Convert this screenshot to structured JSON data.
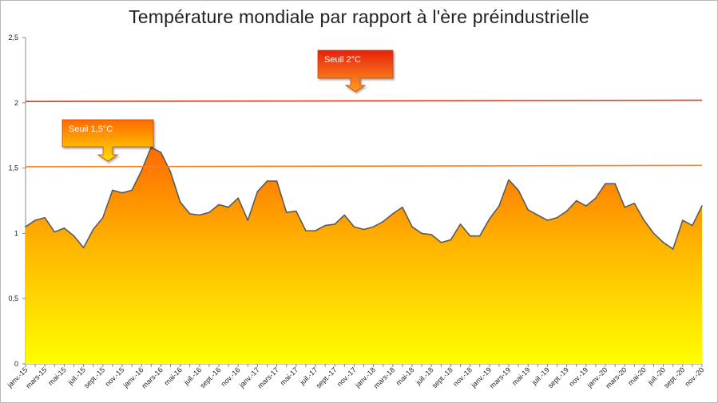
{
  "chart_data": {
    "type": "area",
    "title": "Température mondiale par rapport à l'ère préindustrielle",
    "xlabel": "",
    "ylabel": "",
    "ylim": [
      0,
      2.5
    ],
    "yticks": [
      "0",
      "0,5",
      "1",
      "1,5",
      "2",
      "2,5"
    ],
    "ytick_values": [
      0,
      0.5,
      1,
      1.5,
      2,
      2.5
    ],
    "grid": false,
    "legend": "none",
    "x": [
      "janv.-15",
      "févr.-15",
      "mars-15",
      "avr.-15",
      "mai-15",
      "juin-15",
      "juil.-15",
      "août-15",
      "sept.-15",
      "oct.-15",
      "nov.-15",
      "déc.-15",
      "janv.-16",
      "févr.-16",
      "mars-16",
      "avr.-16",
      "mai-16",
      "juin-16",
      "juil.-16",
      "août-16",
      "sept.-16",
      "oct.-16",
      "nov.-16",
      "déc.-16",
      "janv.-17",
      "févr.-17",
      "mars-17",
      "avr.-17",
      "mai-17",
      "juin-17",
      "juil.-17",
      "août-17",
      "sept.-17",
      "oct.-17",
      "nov.-17",
      "déc.-17",
      "janv.-18",
      "févr.-18",
      "mars-18",
      "avr.-18",
      "mai-18",
      "juin-18",
      "juil.-18",
      "août-18",
      "sept.-18",
      "oct.-18",
      "nov.-18",
      "déc.-18",
      "janv.-19",
      "févr.-19",
      "mars-19",
      "avr.-19",
      "mai-19",
      "juin-19",
      "juil.-19",
      "août-19",
      "sept.-19",
      "oct.-19",
      "nov.-19",
      "déc.-19",
      "janv.-20",
      "févr.-20",
      "mars-20",
      "avr.-20",
      "mai-20",
      "juin-20",
      "juil.-20",
      "août-20",
      "sept.-20",
      "oct.-20",
      "nov.-20"
    ],
    "xtick_labels": [
      "janv.-15",
      "mars-15",
      "mai-15",
      "juil.-15",
      "sept.-15",
      "nov.-15",
      "janv.-16",
      "mars-16",
      "mai-16",
      "juil.-16",
      "sept.-16",
      "nov.-16",
      "janv.-17",
      "mars-17",
      "mai-17",
      "juil.-17",
      "sept.-17",
      "nov.-17",
      "janv.-18",
      "mars-18",
      "mai-18",
      "juil.-18",
      "sept.-18",
      "nov.-18",
      "janv.-19",
      "mars-19",
      "mai-19",
      "juil.-19",
      "sept.-19",
      "nov.-19",
      "janv.-20",
      "mars-20",
      "mai-20",
      "juil.-20",
      "sept.-20",
      "nov.-20"
    ],
    "series": [
      {
        "values": [
          1.05,
          1.1,
          1.12,
          1.01,
          1.04,
          0.98,
          0.89,
          1.03,
          1.12,
          1.33,
          1.31,
          1.33,
          1.48,
          1.66,
          1.62,
          1.47,
          1.24,
          1.15,
          1.14,
          1.16,
          1.22,
          1.2,
          1.27,
          1.1,
          1.32,
          1.4,
          1.4,
          1.16,
          1.17,
          1.02,
          1.02,
          1.06,
          1.07,
          1.14,
          1.05,
          1.03,
          1.05,
          1.09,
          1.15,
          1.2,
          1.05,
          1.0,
          0.99,
          0.93,
          0.95,
          1.07,
          0.98,
          0.98,
          1.11,
          1.21,
          1.41,
          1.33,
          1.18,
          1.14,
          1.1,
          1.12,
          1.17,
          1.25,
          1.21,
          1.27,
          1.38,
          1.38,
          1.2,
          1.23,
          1.1,
          1.0,
          0.93,
          0.88,
          1.1,
          1.06,
          1.21
        ]
      }
    ],
    "thresholds": [
      {
        "label": "Seuil 2°C",
        "value": 2.01,
        "value_end": 2.02,
        "color": "#e8341b"
      },
      {
        "label": "Seuil 1,5°C",
        "value": 1.51,
        "value_end": 1.52,
        "color": "#f5821f"
      }
    ],
    "colors": {
      "area_top": "#ff6a00",
      "area_mid": "#ffb400",
      "area_bottom": "#ffff00",
      "outline": "#5a5a5a",
      "callout_2_top": "#e8200c",
      "callout_2_bottom": "#ffa020",
      "callout_15_top": "#ff6a00",
      "callout_15_bottom": "#ffe000"
    }
  }
}
